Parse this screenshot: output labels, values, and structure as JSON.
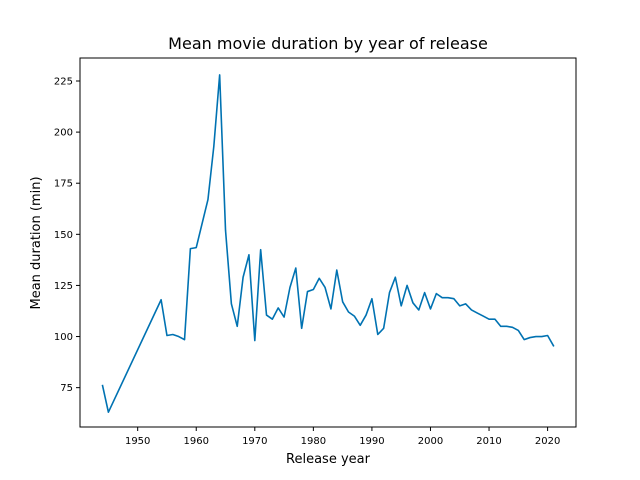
{
  "chart_data": {
    "type": "line",
    "title": "Mean movie duration by year of release",
    "xlabel": "Release year",
    "ylabel": "Mean duration (min)",
    "xlim": [
      1940.15,
      2024.85
    ],
    "ylim": [
      55.75,
      236.25
    ],
    "xticks": [
      1950,
      1960,
      1970,
      1980,
      1990,
      2000,
      2010,
      2020
    ],
    "yticks": [
      75,
      100,
      125,
      150,
      175,
      200,
      225
    ],
    "grid": false,
    "series": [
      {
        "color": "#0072b2",
        "x": [
          1944,
          1945,
          1954,
          1955,
          1956,
          1957,
          1958,
          1959,
          1960,
          1962,
          1963,
          1964,
          1965,
          1966,
          1967,
          1968,
          1969,
          1970,
          1971,
          1972,
          1973,
          1974,
          1975,
          1976,
          1977,
          1978,
          1979,
          1980,
          1981,
          1982,
          1983,
          1984,
          1985,
          1986,
          1987,
          1988,
          1989,
          1990,
          1991,
          1992,
          1993,
          1994,
          1995,
          1996,
          1997,
          1998,
          1999,
          2000,
          2001,
          2002,
          2003,
          2004,
          2005,
          2006,
          2007,
          2008,
          2009,
          2010,
          2011,
          2012,
          2013,
          2014,
          2015,
          2016,
          2017,
          2018,
          2019,
          2020,
          2021
        ],
        "y": [
          76,
          63,
          118,
          100.5,
          101,
          100,
          98.5,
          143,
          143.5,
          167,
          193,
          228,
          152,
          116,
          105,
          129,
          140,
          98,
          142.5,
          110.5,
          108.5,
          114,
          109.5,
          124,
          133.5,
          104,
          122,
          123,
          128.5,
          124,
          113.5,
          132.5,
          117,
          112,
          110,
          105.5,
          110.5,
          118.5,
          101,
          104,
          121.5,
          129,
          115,
          125,
          116.5,
          113,
          121.5,
          113.5,
          121,
          119,
          119,
          118.5,
          115,
          116,
          113,
          111.5,
          110,
          108.5,
          108.5,
          105,
          105,
          104.5,
          103,
          98.5,
          99.5,
          100,
          100,
          100.5,
          95.5
        ]
      }
    ]
  }
}
